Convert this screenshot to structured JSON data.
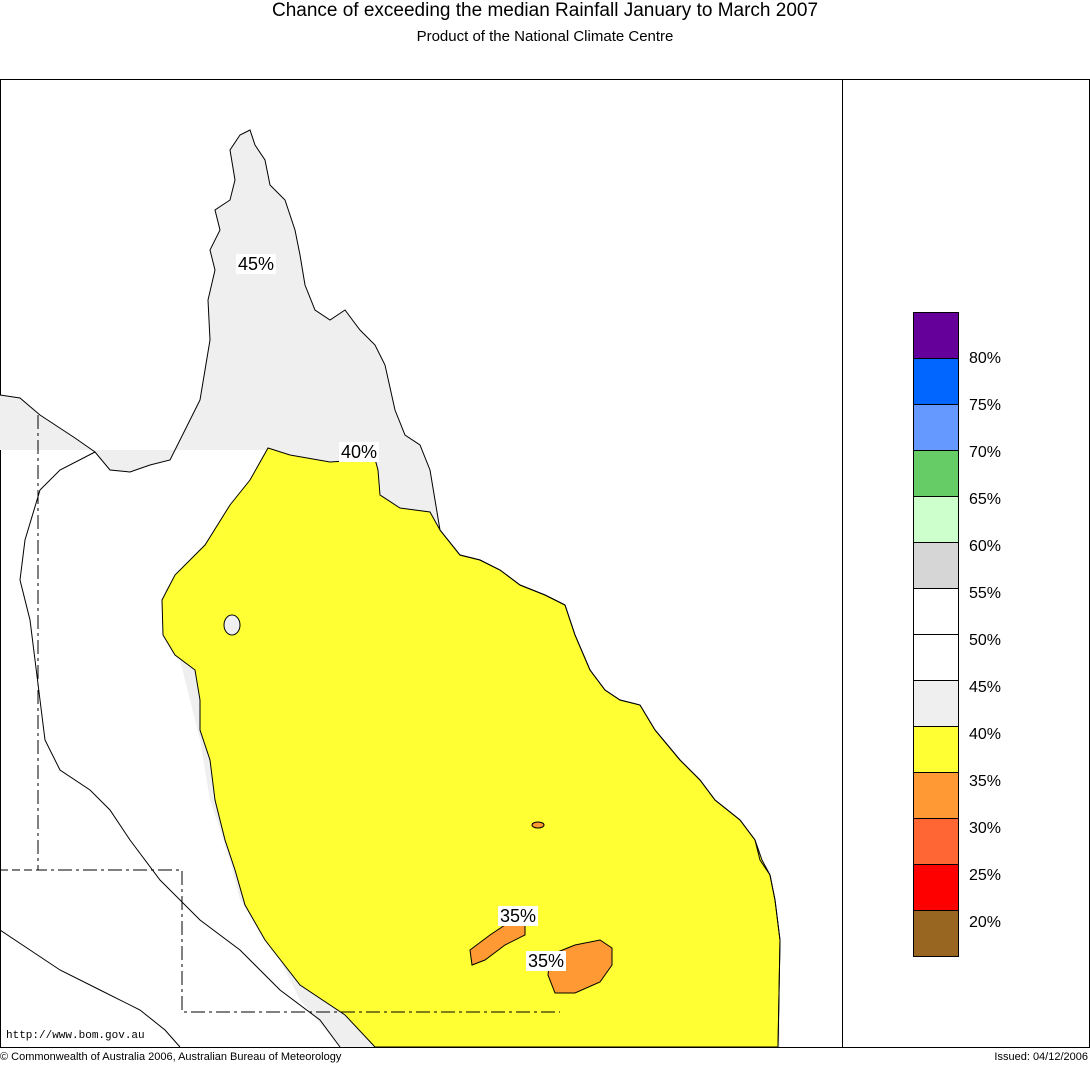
{
  "header": {
    "title": "Chance of exceeding the median Rainfall January to March 2007",
    "subtitle": "Product of the National Climate Centre"
  },
  "map": {
    "labels": [
      "45%",
      "40%",
      "35%",
      "35%"
    ]
  },
  "legend": {
    "colors": [
      "#66009a",
      "#0066ff",
      "#6699ff",
      "#66cc66",
      "#ccffcc",
      "#d6d6d6",
      "#ffffff",
      "#ffffff",
      "#efefef",
      "#ffff33",
      "#ff9933",
      "#ff6633",
      "#ff0000",
      "#996622"
    ],
    "labels": [
      "80%",
      "75%",
      "70%",
      "65%",
      "60%",
      "55%",
      "50%",
      "45%",
      "40%",
      "35%",
      "30%",
      "25%",
      "20%"
    ]
  },
  "footer": {
    "url": "http://www.bom.gov.au",
    "copyright": "© Commonwealth of Australia 2006, Australian Bureau of Meteorology",
    "issued": "Issued: 04/12/2006"
  }
}
